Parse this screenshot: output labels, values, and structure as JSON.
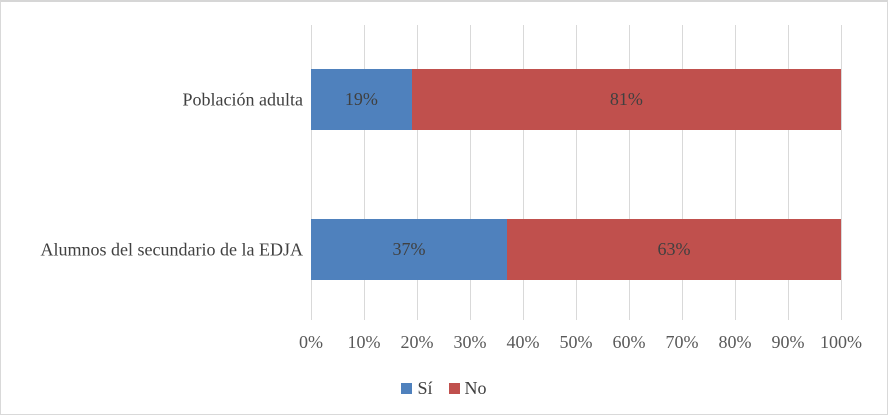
{
  "chart_data": {
    "type": "bar",
    "orientation": "horizontal",
    "stacked": true,
    "title": "",
    "categories": [
      "Población adulta",
      "Alumnos del secundario de la EDJA"
    ],
    "series": [
      {
        "name": "Sí",
        "color": "#4F81BD",
        "values": [
          19,
          37
        ]
      },
      {
        "name": "No",
        "color": "#C0504D",
        "values": [
          81,
          63
        ]
      }
    ],
    "data_labels": [
      [
        "19%",
        "81%"
      ],
      [
        "37%",
        "63%"
      ]
    ],
    "x_axis": {
      "min": 0,
      "max": 100,
      "step": 10,
      "ticks": [
        "0%",
        "10%",
        "20%",
        "30%",
        "40%",
        "50%",
        "60%",
        "70%",
        "80%",
        "90%",
        "100%"
      ]
    },
    "grid": true,
    "legend": {
      "position": "bottom",
      "items": [
        {
          "label": "Sí",
          "color": "#4F81BD"
        },
        {
          "label": "No",
          "color": "#C0504D"
        }
      ]
    }
  },
  "colors": {
    "gridline": "#d9d9d9",
    "border": "#d9d9d9",
    "tick_text": "#595959",
    "label_text": "#404040",
    "background": "#ffffff"
  }
}
